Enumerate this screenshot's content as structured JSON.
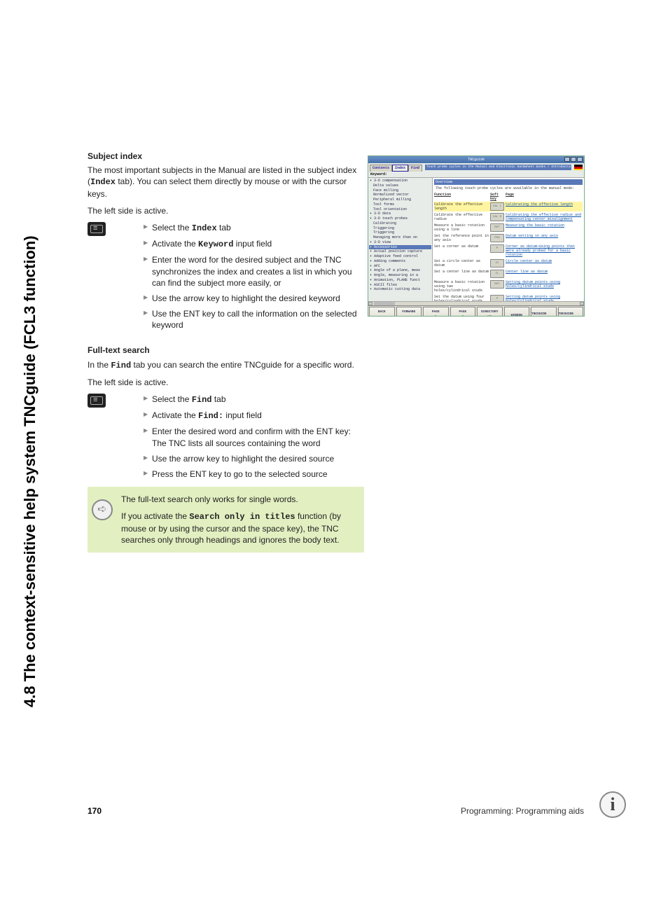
{
  "side_title": "4.8 The context-sensitive help system TNCguide (FCL3 function)",
  "section1": {
    "heading": "Subject index",
    "intro_a": "The most important subjects in the Manual are listed in the subject index (",
    "intro_mono": "Index",
    "intro_b": " tab). You can select them directly by mouse or with the cursor keys.",
    "active": "The left side is active.",
    "steps": [
      {
        "pre": "Select the ",
        "mono": "Index",
        "post": " tab"
      },
      {
        "pre": "Activate the ",
        "mono": "Keyword",
        "post": " input field"
      },
      {
        "pre": "Enter the word for the desired subject and the TNC synchronizes the index and creates a list in which you can find the subject more easily, or",
        "mono": "",
        "post": ""
      },
      {
        "pre": "Use the arrow key to highlight the desired keyword",
        "mono": "",
        "post": ""
      },
      {
        "pre": "Use the ENT key to call the information on the selected keyword",
        "mono": "",
        "post": ""
      }
    ]
  },
  "section2": {
    "heading": "Full-text search",
    "intro_a": "In the ",
    "intro_mono": "Find",
    "intro_b": " tab you can search the entire TNCguide for a specific word.",
    "active": "The left side is active.",
    "steps": [
      {
        "pre": "Select the ",
        "mono": "Find",
        "post": " tab"
      },
      {
        "pre": "Activate the ",
        "mono": "Find:",
        "post": " input field"
      },
      {
        "pre": "Enter the desired word and confirm with the ENT key: The TNC lists all sources containing the word",
        "mono": "",
        "post": ""
      },
      {
        "pre": "Use the arrow key to highlight the desired source",
        "mono": "",
        "post": ""
      },
      {
        "pre": "Press the ENT key to go to the selected source",
        "mono": "",
        "post": ""
      }
    ]
  },
  "note": {
    "line1": "The full-text search only works for single words.",
    "line2a": "If you activate the ",
    "line2mono": "Search only in titles",
    "line2b": " function (by mouse or by using the cursor and the space key), the TNC searches only through headings and ignores the body text."
  },
  "shot": {
    "title": "TNCguide",
    "tabs": [
      "Contents",
      "Index",
      "Find"
    ],
    "active_tab": 1,
    "breadcrumb": "Touch probe cycles in the Manual and Electronic Handwheel modes / Introduction",
    "keyword_label": "Keyword:",
    "overview": "Overview",
    "intro": "The following touch probe cycles are available in the manual mode:",
    "head": {
      "c1": "Function",
      "c2": "Soft key",
      "c3": "Page"
    },
    "left_items": [
      {
        "t": "3-D compensation",
        "l": 0,
        "sel": false
      },
      {
        "t": "Delta values",
        "l": 1,
        "sel": false
      },
      {
        "t": "Face milling",
        "l": 1,
        "sel": false
      },
      {
        "t": "Normalized vector",
        "l": 1,
        "sel": false
      },
      {
        "t": "Peripheral milling",
        "l": 1,
        "sel": false
      },
      {
        "t": "Tool forms",
        "l": 1,
        "sel": false
      },
      {
        "t": "Tool orientation",
        "l": 1,
        "sel": false
      },
      {
        "t": "3-D data",
        "l": 0,
        "sel": false
      },
      {
        "t": "3-D touch probes",
        "l": 0,
        "sel": false
      },
      {
        "t": "Calibrating",
        "l": 1,
        "sel": false
      },
      {
        "t": "Triggering",
        "l": 1,
        "sel": false
      },
      {
        "t": "Triggering",
        "l": 1,
        "sel": false
      },
      {
        "t": "Managing more than on",
        "l": 1,
        "sel": false
      },
      {
        "t": "3-D view",
        "l": 0,
        "sel": false
      },
      {
        "t": "Accessories",
        "l": 0,
        "sel": true
      },
      {
        "t": "Actual position capture",
        "l": 0,
        "sel": false
      },
      {
        "t": "Adaptive feed control",
        "l": 0,
        "sel": false
      },
      {
        "t": "Adding comments",
        "l": 0,
        "sel": false
      },
      {
        "t": "AFC",
        "l": 0,
        "sel": false
      },
      {
        "t": "Angle of a plane, meas",
        "l": 0,
        "sel": false
      },
      {
        "t": "Angle, measuring in a",
        "l": 0,
        "sel": false
      },
      {
        "t": "Animation, PLANE funct",
        "l": 0,
        "sel": false
      },
      {
        "t": "ASCII files",
        "l": 0,
        "sel": false
      },
      {
        "t": "Automatic cutting data",
        "l": 0,
        "sel": false
      }
    ],
    "rows": [
      {
        "f": "Calibrate the effective length",
        "k": "CAL L",
        "p": "Calibrating the effective length",
        "hl": true
      },
      {
        "f": "Calibrate the effective radius",
        "k": "CAL R",
        "p": "Calibrating the effective radius and compensating center misalignment"
      },
      {
        "f": "Measure a basic rotation using a line",
        "k": "ROT",
        "p": "Measuring the basic rotation"
      },
      {
        "f": "Set the reference point in any axis",
        "k": "POS",
        "p": "Datum setting in any axis"
      },
      {
        "f": "Set a corner as datum",
        "k": "P",
        "p": "Corner as datum—Using points that were already probed for a basic rotation"
      },
      {
        "f": "Set a circle center as datum",
        "k": "CC",
        "p": "Circle center as datum"
      },
      {
        "f": "Set a center line as datum",
        "k": "CL",
        "p": "Center line as datum"
      },
      {
        "f": "Measure a basic rotation using two holes/cylindrical studs",
        "k": "ROT",
        "p": "Setting datum points using holes/cylindrical studs"
      },
      {
        "f": "Set the datum using four holes/cylindrical studs",
        "k": "P",
        "p": "Setting datum points using holes/cylindrical studs"
      },
      {
        "f": "Set a circle center using three holes/studs",
        "k": "CC",
        "p": "Setting datum points using holes/cylindrical studs"
      }
    ],
    "buttons": [
      {
        "l": "BACK",
        "sym": "⇦",
        "c": "#2a7de1"
      },
      {
        "l": "FORWARD",
        "sym": "⇨",
        "c": "#2a7de1"
      },
      {
        "l": "PAGE",
        "sym": "⇧",
        "c": "#1aa01a"
      },
      {
        "l": "PAGE",
        "sym": "⇩",
        "c": "#1aa01a"
      },
      {
        "l": "DIRECTORY",
        "sym": "▤",
        "c": "#888"
      },
      {
        "l": "WINDOW",
        "sym": "",
        "c": "#888",
        "u": true
      },
      {
        "l": "TNCGUIDE QUIT",
        "sym": "",
        "c": "#333"
      },
      {
        "l": "TNCGUIDE EXIT",
        "sym": "",
        "c": "#333"
      }
    ]
  },
  "footer": {
    "page": "170",
    "text": "Programming: Programming aids"
  },
  "colors": {
    "note_bg": "#e2efc1",
    "link": "#1155aa"
  }
}
